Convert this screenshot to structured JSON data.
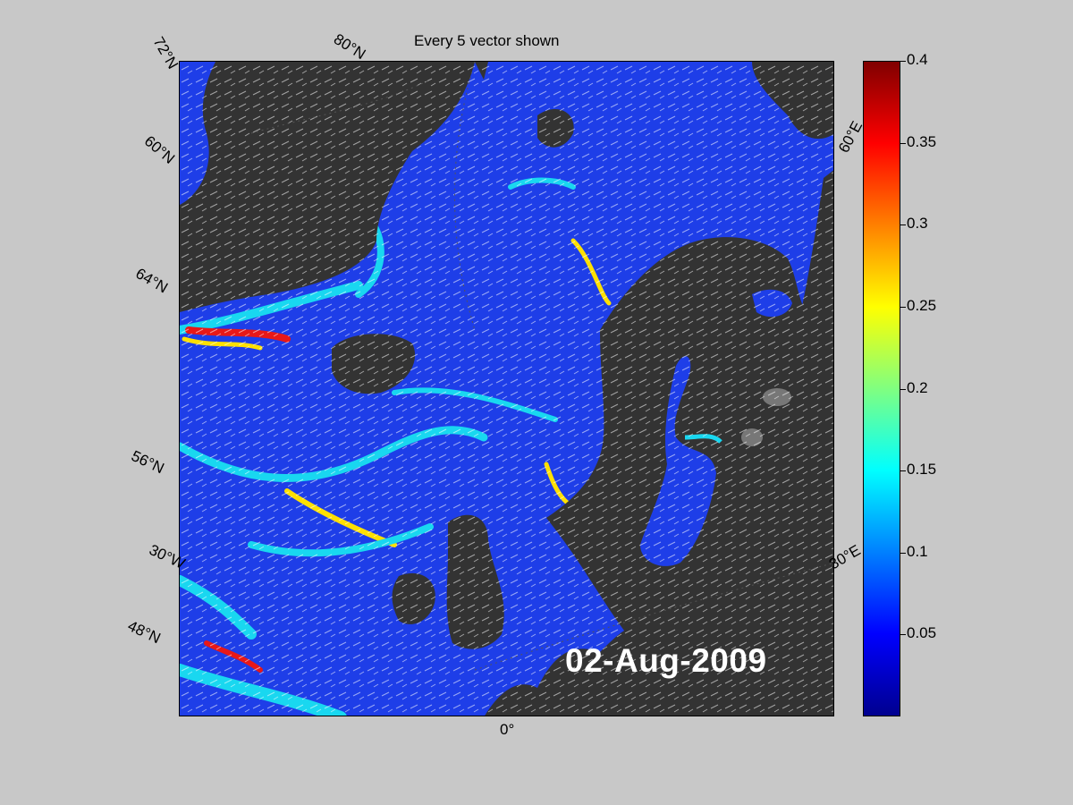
{
  "title": "Every 5 vector shown",
  "date": "02-Aug-2009",
  "lat_labels": [
    "72°N",
    "60°N",
    "64°N",
    "56°N",
    "48°N"
  ],
  "lon_labels": [
    "80°N",
    "30°W",
    "0°",
    "30°E",
    "60°E"
  ],
  "colorbar": {
    "ticks": [
      "0.4",
      "0.35",
      "0.3",
      "0.25",
      "0.2",
      "0.15",
      "0.1",
      "0.05"
    ],
    "min": 0,
    "max": 0.4,
    "colormap": "jet"
  },
  "colors": {
    "background": "#c8c8c8",
    "land": "#333333",
    "ocean_low": "#1e3ee8",
    "vectors": "#ffffff"
  }
}
